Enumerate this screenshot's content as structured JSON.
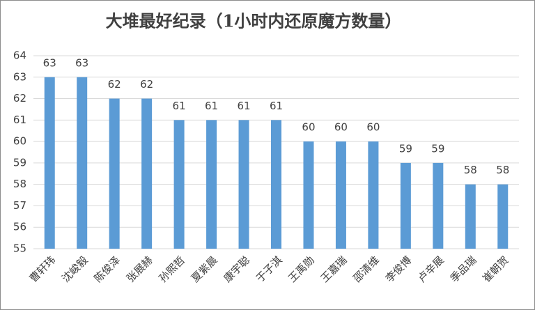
{
  "chart_data": {
    "type": "bar",
    "title": "大堆最好纪录（1小时内还原魔方数量）",
    "categories": [
      "曹轩玮",
      "沈峻毅",
      "陈俊泽",
      "张展赫",
      "孙熙哲",
      "夏紫晨",
      "康宇聪",
      "于子淇",
      "王禹勋",
      "王嘉瑞",
      "邵清维",
      "李俊博",
      "卢辛展",
      "季品瑞",
      "崔朝贺"
    ],
    "values": [
      63,
      63,
      62,
      62,
      61,
      61,
      61,
      61,
      60,
      60,
      60,
      59,
      59,
      58,
      58
    ],
    "color": "#5b9bd5",
    "ylim": [
      55,
      64
    ],
    "yticks": [
      55,
      56,
      57,
      58,
      59,
      60,
      61,
      62,
      63,
      64
    ],
    "grid": true
  }
}
